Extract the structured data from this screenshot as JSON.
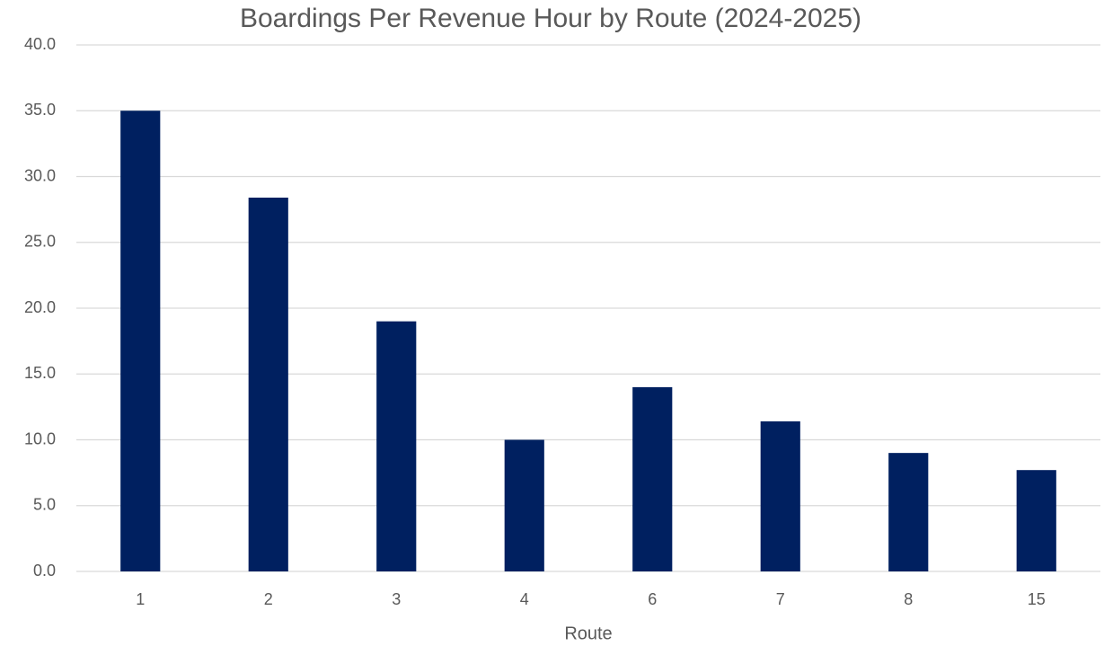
{
  "chart_data": {
    "type": "bar",
    "title": "Boardings Per Revenue Hour by Route (2024-2025)",
    "x_label": "Route",
    "categories": [
      "1",
      "2",
      "3",
      "4",
      "6",
      "7",
      "8",
      "15"
    ],
    "values": [
      35.0,
      28.4,
      19.0,
      10.0,
      14.0,
      11.4,
      9.0,
      7.7
    ],
    "color": "#002060",
    "ylim": [
      0,
      40
    ],
    "yticks": [
      {
        "value": 0,
        "label": "0.0"
      },
      {
        "value": 5,
        "label": "5.0"
      },
      {
        "value": 10,
        "label": "10.0"
      },
      {
        "value": 15,
        "label": "15.0"
      },
      {
        "value": 20,
        "label": "20.0"
      },
      {
        "value": 25,
        "label": "25.0"
      },
      {
        "value": 30,
        "label": "30.0"
      },
      {
        "value": 35,
        "label": "35.0"
      },
      {
        "value": 40,
        "label": "40.0"
      }
    ],
    "grid": true
  }
}
